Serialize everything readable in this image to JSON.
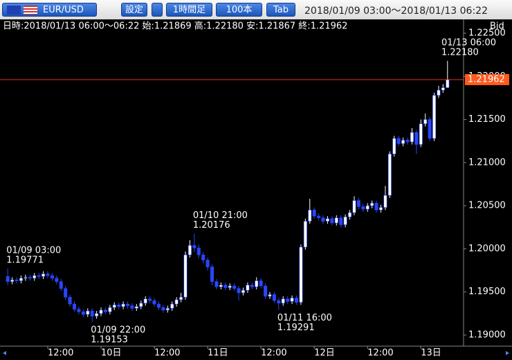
{
  "toolbar": {
    "symbol": "EUR/USD",
    "buttons": [
      "設定",
      "1時間足",
      "100本",
      "Tab"
    ],
    "range": "2018/01/09 03:00〜2018/01/13 06:22"
  },
  "info": "日時:2018/01/13 06:00〜06:22 始:1.21869 高:1.22180 安:1.21867 終:1.21962",
  "chart_data": {
    "type": "candlestick",
    "price_label": "Bid",
    "up_color": "#ffffff",
    "down_color": "#2846ff",
    "last_color": "#ff5a1e",
    "ylim": [
      1.19,
      1.225
    ],
    "yticks": [
      {
        "value": 1.19,
        "label": "1.19000"
      },
      {
        "value": 1.195,
        "label": "1.19500"
      },
      {
        "value": 1.2,
        "label": "1.20000"
      },
      {
        "value": 1.205,
        "label": "1.20500"
      },
      {
        "value": 1.21,
        "label": "1.21000"
      },
      {
        "value": 1.215,
        "label": "1.21500"
      },
      {
        "value": 1.22,
        "label": "1.22000"
      },
      {
        "value": 1.225,
        "label": "1.22500"
      }
    ],
    "xticks": [
      {
        "value": 9,
        "label": "12:00"
      },
      {
        "value": 21,
        "label": "10日"
      },
      {
        "value": 33,
        "label": "12:00"
      },
      {
        "value": 45,
        "label": "11日"
      },
      {
        "value": 57,
        "label": "12:00"
      },
      {
        "value": 69,
        "label": "12日"
      },
      {
        "value": 81,
        "label": "12:00"
      },
      {
        "value": 93,
        "label": "13日"
      }
    ],
    "open": [
      1.1968,
      1.1962,
      1.1964,
      1.1963,
      1.1966,
      1.1967,
      1.1966,
      1.1969,
      1.1968,
      1.1971,
      1.1969,
      1.1966,
      1.1962,
      1.1954,
      1.1944,
      1.1936,
      1.193,
      1.1927,
      1.1924,
      1.1928,
      1.1922,
      1.1925,
      1.1929,
      1.1927,
      1.1932,
      1.1935,
      1.1933,
      1.1936,
      1.1934,
      1.1931,
      1.1933,
      1.1937,
      1.1942,
      1.194,
      1.1936,
      1.1932,
      1.1929,
      1.1931,
      1.1936,
      1.1941,
      1.1944,
      1.1993,
      1.2004,
      1.2001,
      1.1993,
      1.1987,
      1.1979,
      1.1962,
      1.1956,
      1.1958,
      1.1955,
      1.1957,
      1.1954,
      1.1949,
      1.1952,
      1.1958,
      1.1956,
      1.1963,
      1.1957,
      1.1945,
      1.1947,
      1.194,
      1.1937,
      1.1942,
      1.1939,
      1.1943,
      1.1938,
      1.2002,
      1.2032,
      1.2045,
      1.2038,
      1.2036,
      1.2032,
      1.2035,
      1.203,
      1.2036,
      1.2028,
      1.2037,
      1.2042,
      1.2056,
      1.2049,
      1.2046,
      1.205,
      1.2053,
      1.2045,
      1.2048,
      1.2062,
      1.211,
      1.2128,
      1.2122,
      1.2126,
      1.2124,
      1.2135,
      1.2121,
      1.2145,
      1.215,
      1.2128,
      1.2178,
      1.2184,
      1.21869
    ],
    "high": [
      1.19771,
      1.1967,
      1.1967,
      1.1969,
      1.197,
      1.197,
      1.1972,
      1.1972,
      1.1974,
      1.1974,
      1.1972,
      1.1969,
      1.1965,
      1.1957,
      1.1947,
      1.1939,
      1.1933,
      1.193,
      1.1931,
      1.1931,
      1.1928,
      1.1932,
      1.1932,
      1.1935,
      1.1938,
      1.1938,
      1.1939,
      1.1939,
      1.1937,
      1.1936,
      1.194,
      1.1945,
      1.1945,
      1.1943,
      1.1939,
      1.1935,
      1.1934,
      1.1939,
      1.1944,
      1.1949,
      1.1997,
      1.201,
      1.20176,
      1.2005,
      1.1996,
      1.199,
      1.1982,
      1.1965,
      1.1961,
      1.1961,
      1.196,
      1.196,
      1.1957,
      1.1955,
      1.1961,
      1.1961,
      1.1967,
      1.1966,
      1.196,
      1.195,
      1.195,
      1.1943,
      1.1945,
      1.1945,
      1.1946,
      1.1946,
      1.2005,
      1.2035,
      1.2058,
      1.2048,
      1.2041,
      1.2039,
      1.2038,
      1.2038,
      1.2039,
      1.2039,
      1.204,
      1.2045,
      1.2061,
      1.2059,
      1.2052,
      1.2053,
      1.2056,
      1.2056,
      1.2051,
      1.2073,
      1.2113,
      1.2131,
      1.2131,
      1.2129,
      1.2129,
      1.214,
      1.2138,
      1.215,
      1.2157,
      1.2153,
      1.2181,
      1.2189,
      1.2191,
      1.2218
    ],
    "low": [
      1.1958,
      1.1959,
      1.196,
      1.196,
      1.1963,
      1.1963,
      1.1963,
      1.1965,
      1.1965,
      1.1966,
      1.1963,
      1.1959,
      1.1951,
      1.1941,
      1.1933,
      1.1927,
      1.1924,
      1.1921,
      1.1921,
      1.19153,
      1.1919,
      1.1922,
      1.1924,
      1.1924,
      1.1929,
      1.193,
      1.193,
      1.1931,
      1.1928,
      1.1928,
      1.193,
      1.1934,
      1.1937,
      1.1933,
      1.1929,
      1.1926,
      1.1926,
      1.1928,
      1.1933,
      1.1938,
      1.1941,
      1.199,
      1.1996,
      1.1989,
      1.1983,
      1.1975,
      1.1958,
      1.1953,
      1.1953,
      1.1952,
      1.1952,
      1.1951,
      1.194,
      1.1946,
      1.1949,
      1.1953,
      1.1953,
      1.1954,
      1.1942,
      1.1942,
      1.1937,
      1.19291,
      1.1934,
      1.1936,
      1.1936,
      1.1935,
      1.1935,
      1.1999,
      1.2029,
      1.2035,
      1.2033,
      1.2029,
      1.2029,
      1.2027,
      1.2027,
      1.2025,
      1.2025,
      1.2034,
      1.2039,
      1.2046,
      1.2043,
      1.2043,
      1.2047,
      1.2042,
      1.2042,
      1.2045,
      1.2059,
      1.2107,
      1.2119,
      1.2119,
      1.2121,
      1.2121,
      1.211,
      1.2118,
      1.2142,
      1.2125,
      1.2125,
      1.2175,
      1.2181,
      1.21867
    ],
    "close": [
      1.1962,
      1.1964,
      1.1963,
      1.1966,
      1.1967,
      1.1966,
      1.1969,
      1.1968,
      1.1971,
      1.1969,
      1.1966,
      1.1962,
      1.1954,
      1.1944,
      1.1936,
      1.193,
      1.1927,
      1.1924,
      1.1928,
      1.1922,
      1.1925,
      1.1929,
      1.1927,
      1.1932,
      1.1935,
      1.1933,
      1.1936,
      1.1934,
      1.1931,
      1.1933,
      1.1937,
      1.1942,
      1.194,
      1.1936,
      1.1932,
      1.1929,
      1.1931,
      1.1936,
      1.1941,
      1.1944,
      1.1993,
      1.2004,
      1.2001,
      1.1993,
      1.1987,
      1.1979,
      1.1962,
      1.1956,
      1.1958,
      1.1955,
      1.1957,
      1.1954,
      1.1949,
      1.1952,
      1.1958,
      1.1956,
      1.1963,
      1.1957,
      1.1945,
      1.1947,
      1.194,
      1.1937,
      1.1942,
      1.1939,
      1.1943,
      1.1938,
      1.2002,
      1.2032,
      1.2045,
      1.2038,
      1.2036,
      1.2032,
      1.2035,
      1.203,
      1.2036,
      1.2028,
      1.2037,
      1.2042,
      1.2056,
      1.2049,
      1.2046,
      1.205,
      1.2053,
      1.2045,
      1.2048,
      1.2062,
      1.211,
      1.2128,
      1.2122,
      1.2126,
      1.2124,
      1.2135,
      1.2121,
      1.2145,
      1.215,
      1.2128,
      1.2178,
      1.2184,
      1.21869,
      1.21962
    ],
    "annotations": [
      {
        "time": "01/09 03:00",
        "value": 1.19771
      },
      {
        "time": "01/10 21:00",
        "value": 1.20176
      },
      {
        "time": "01/09 22:00",
        "value": 1.19153
      },
      {
        "time": "01/11 16:00",
        "value": 1.19291
      },
      {
        "time": "01/13 06:00",
        "value": {
          "value": 1.2218,
          "label": "1.22180"
        }
      }
    ]
  }
}
